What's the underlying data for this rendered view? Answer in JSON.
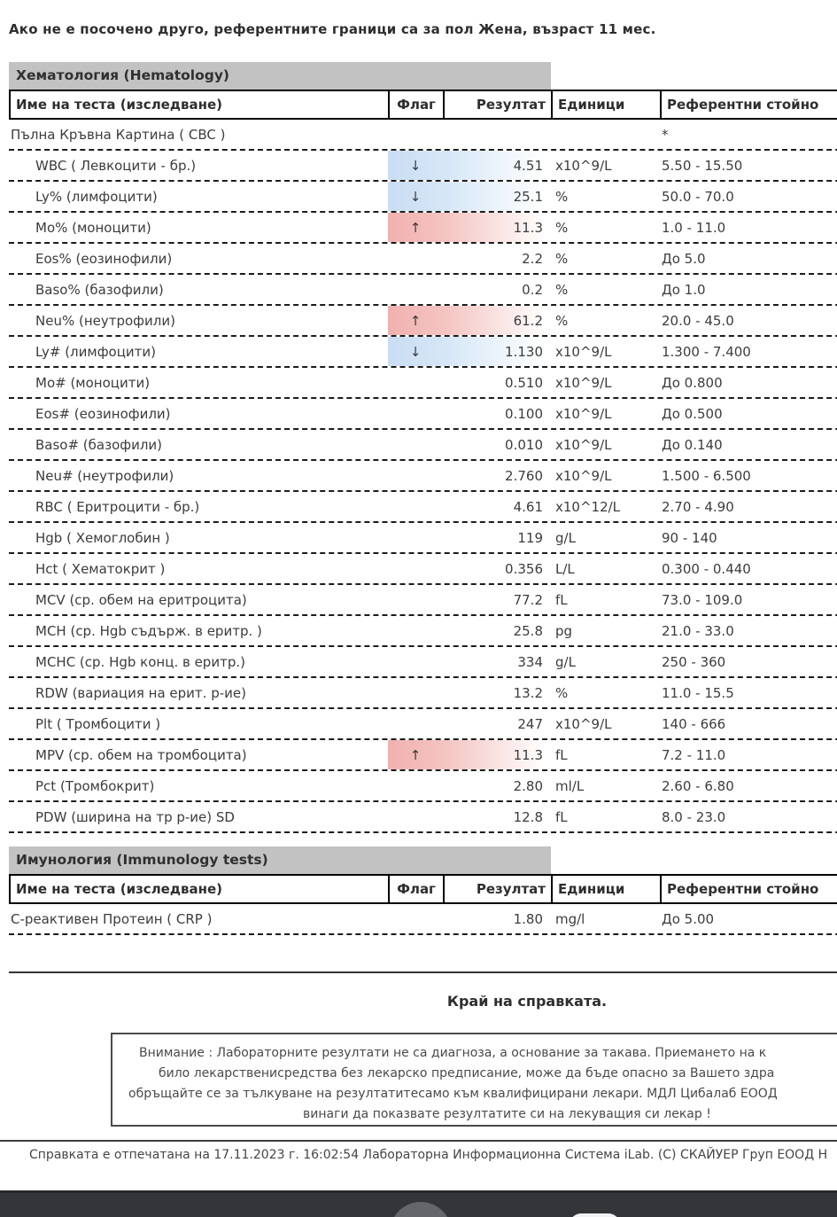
{
  "top_note": "Ако не е посочено друго, референтните граници са за пол Жена, възраст 11 мес.",
  "columns": {
    "name": "Име на теста (изследване)",
    "flag": "Флаг",
    "result": "Резултат",
    "units": "Единици",
    "ref": "Референтни стойно"
  },
  "flag_icons": {
    "low": "↓",
    "high": "↑"
  },
  "status_colors": {
    "low_fill": "#c9ddf2",
    "high_fill": "#f0b1ae",
    "section_bar": "#c2c2c2",
    "navbar": "#343539"
  },
  "sections": [
    {
      "title": "Хематология (Hematology)",
      "rows": [
        {
          "name": "Пълна Кръвна Картина ( CBC )",
          "flag": "",
          "result": "",
          "units": "",
          "ref": "*",
          "status": "none",
          "indent": false
        },
        {
          "name": "WBC ( Левкоцити - бр.)",
          "flag": "↓",
          "result": "4.51",
          "units": "x10^9/L",
          "ref": "5.50 - 15.50",
          "status": "low",
          "indent": true
        },
        {
          "name": "Ly% (лимфоцити)",
          "flag": "↓",
          "result": "25.1",
          "units": "%",
          "ref": "50.0 - 70.0",
          "status": "low",
          "indent": true
        },
        {
          "name": "Mo% (моноцити)",
          "flag": "↑",
          "result": "11.3",
          "units": "%",
          "ref": "1.0 - 11.0",
          "status": "high",
          "indent": true
        },
        {
          "name": "Eos% (еозинофили)",
          "flag": "",
          "result": "2.2",
          "units": "%",
          "ref": "До 5.0",
          "status": "none",
          "indent": true
        },
        {
          "name": "Baso% (базофили)",
          "flag": "",
          "result": "0.2",
          "units": "%",
          "ref": "До 1.0",
          "status": "none",
          "indent": true
        },
        {
          "name": "Neu% (неутрофили)",
          "flag": "↑",
          "result": "61.2",
          "units": "%",
          "ref": "20.0 - 45.0",
          "status": "high",
          "indent": true
        },
        {
          "name": "Ly# (лимфоцити)",
          "flag": "↓",
          "result": "1.130",
          "units": "x10^9/L",
          "ref": "1.300 - 7.400",
          "status": "low",
          "indent": true
        },
        {
          "name": "Mo# (моноцити)",
          "flag": "",
          "result": "0.510",
          "units": "x10^9/L",
          "ref": "До 0.800",
          "status": "none",
          "indent": true
        },
        {
          "name": "Eos# (еозинофили)",
          "flag": "",
          "result": "0.100",
          "units": "x10^9/L",
          "ref": "До 0.500",
          "status": "none",
          "indent": true
        },
        {
          "name": "Baso# (базофили)",
          "flag": "",
          "result": "0.010",
          "units": "x10^9/L",
          "ref": "До 0.140",
          "status": "none",
          "indent": true
        },
        {
          "name": "Neu# (неутрофили)",
          "flag": "",
          "result": "2.760",
          "units": "x10^9/L",
          "ref": "1.500 - 6.500",
          "status": "none",
          "indent": true
        },
        {
          "name": "RBC ( Еритроцити - бр.)",
          "flag": "",
          "result": "4.61",
          "units": "x10^12/L",
          "ref": "2.70 - 4.90",
          "status": "none",
          "indent": true
        },
        {
          "name": "Hgb ( Хемоглобин )",
          "flag": "",
          "result": "119",
          "units": "g/L",
          "ref": "90 - 140",
          "status": "none",
          "indent": true
        },
        {
          "name": "Hct ( Хематокрит )",
          "flag": "",
          "result": "0.356",
          "units": "L/L",
          "ref": "0.300 - 0.440",
          "status": "none",
          "indent": true
        },
        {
          "name": "MCV (ср. обем на еритроцита)",
          "flag": "",
          "result": "77.2",
          "units": "fL",
          "ref": "73.0 - 109.0",
          "status": "none",
          "indent": true
        },
        {
          "name": "MCH (ср. Hgb съдърж. в еритр. )",
          "flag": "",
          "result": "25.8",
          "units": "pg",
          "ref": "21.0 - 33.0",
          "status": "none",
          "indent": true
        },
        {
          "name": "MCHC (ср. Hgb конц. в еритр.)",
          "flag": "",
          "result": "334",
          "units": "g/L",
          "ref": "250 - 360",
          "status": "none",
          "indent": true
        },
        {
          "name": "RDW (вариация на ерит. р-ие)",
          "flag": "",
          "result": "13.2",
          "units": "%",
          "ref": "11.0 - 15.5",
          "status": "none",
          "indent": true
        },
        {
          "name": "Plt ( Тромбоцити )",
          "flag": "",
          "result": "247",
          "units": "x10^9/L",
          "ref": "140 - 666",
          "status": "none",
          "indent": true
        },
        {
          "name": "MPV (ср. обем на тромбоцита)",
          "flag": "↑",
          "result": "11.3",
          "units": "fL",
          "ref": "7.2 - 11.0",
          "status": "high",
          "indent": true
        },
        {
          "name": "Pct (Тромбокрит)",
          "flag": "",
          "result": "2.80",
          "units": "ml/L",
          "ref": "2.60 - 6.80",
          "status": "none",
          "indent": true
        },
        {
          "name": "PDW (ширина на тр р-ие) SD",
          "flag": "",
          "result": "12.8",
          "units": "fL",
          "ref": "8.0 - 23.0",
          "status": "none",
          "indent": true
        }
      ]
    },
    {
      "title": "Имунология (Immunology tests)",
      "rows": [
        {
          "name": "C-реактивен Протеин ( CRP )",
          "flag": "",
          "result": "1.80",
          "units": "mg/l",
          "ref": "До 5.00",
          "status": "none",
          "indent": false
        }
      ]
    }
  ],
  "end_note": "Край на справката.",
  "warning_lines": [
    "Внимание : Лабораторните резултати не са диагноза, а основание за такава. Приемането на к",
    "било лекарственисредства без лекарско предписание, може да бъде опасно за Вашето здра",
    "обръщайте се за тълкуване на резултатитесамо към квалифицирани лекари. МДЛ Цибалаб ЕООД",
    "винаги да показвате резултатите си на лекуващия си лекар !"
  ],
  "footer_text": "Справката е отпечатана на 17.11.2023 г. 16:02:54 Лабораторна Информационна Система iLab. (С) СКАЙУЕР Груп ЕООД Н",
  "print_date": "17.11.2023",
  "print_time": "16:02:54",
  "nav": {
    "home": "home-button",
    "recents": "recents-button"
  }
}
